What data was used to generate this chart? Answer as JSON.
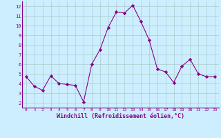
{
  "x": [
    0,
    1,
    2,
    3,
    4,
    5,
    6,
    7,
    8,
    9,
    10,
    11,
    12,
    13,
    14,
    15,
    16,
    17,
    18,
    19,
    20,
    21,
    22,
    23
  ],
  "y": [
    4.7,
    3.7,
    3.3,
    4.8,
    4.0,
    3.9,
    3.8,
    2.1,
    6.0,
    7.5,
    9.8,
    11.4,
    11.3,
    12.1,
    10.4,
    8.5,
    5.5,
    5.2,
    4.1,
    5.8,
    6.5,
    5.0,
    4.7,
    4.7
  ],
  "line_color": "#880088",
  "marker": "D",
  "marker_size": 2.2,
  "bg_color": "#cceeff",
  "grid_color": "#aacccc",
  "xlabel": "Windchill (Refroidissement éolien,°C)",
  "xlabel_color": "#880088",
  "tick_color": "#880088",
  "xlim": [
    -0.5,
    23.5
  ],
  "ylim": [
    1.5,
    12.5
  ],
  "yticks": [
    2,
    3,
    4,
    5,
    6,
    7,
    8,
    9,
    10,
    11,
    12
  ],
  "xticks": [
    0,
    1,
    2,
    3,
    4,
    5,
    6,
    7,
    8,
    9,
    10,
    11,
    12,
    13,
    14,
    15,
    16,
    17,
    18,
    19,
    20,
    21,
    22,
    23
  ]
}
